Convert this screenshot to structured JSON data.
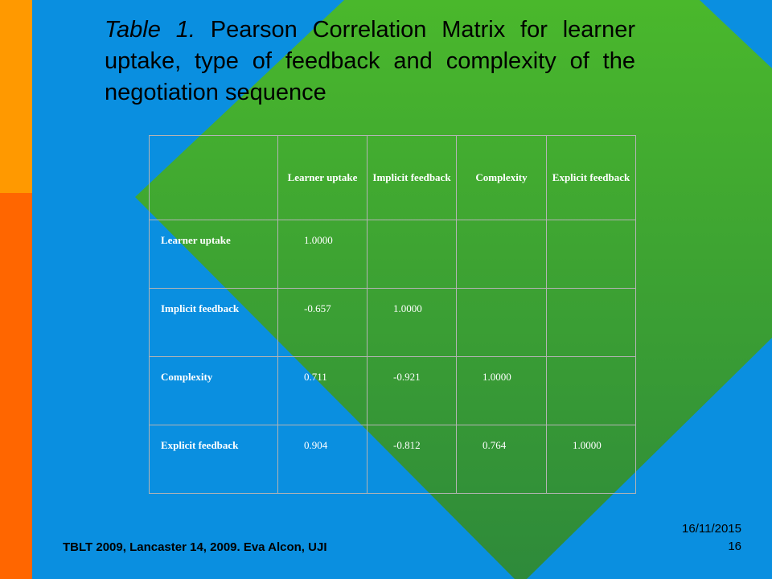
{
  "slide": {
    "title_italic": "Table 1.",
    "title_rest": " Pearson Correlation Matrix for learner uptake, type of feedback and complexity of the negotiation sequence",
    "colors": {
      "background": "#0a8fe0",
      "bar_top": "#ff9900",
      "bar_bottom": "#ff6600",
      "diamond_top": "#4ab82c",
      "diamond_bottom": "#2e8a3a"
    }
  },
  "table": {
    "headers": [
      "",
      "Learner uptake",
      "Implicit feedback",
      "Complexity",
      "Explicit feedback"
    ],
    "rows": [
      {
        "label": "Learner uptake",
        "values": [
          "1.0000",
          "",
          "",
          ""
        ]
      },
      {
        "label": "Implicit feedback",
        "values": [
          "-0.657",
          "1.0000",
          "",
          ""
        ]
      },
      {
        "label": "Complexity",
        "values": [
          "0.711",
          "-0.921",
          "1.0000",
          ""
        ]
      },
      {
        "label": "Explicit feedback",
        "values": [
          "0.904",
          "-0.812",
          "0.764",
          "1.0000"
        ]
      }
    ]
  },
  "footer": {
    "conference": "TBLT 2009, Lancaster 14, 2009. Eva Alcon, UJI",
    "date": "16/11/2015",
    "slide_number": "16"
  }
}
